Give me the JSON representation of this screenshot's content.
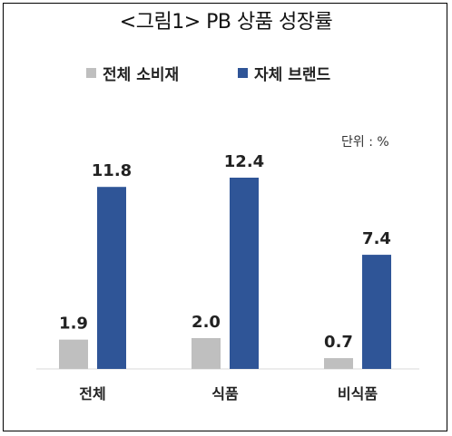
{
  "chart_data": {
    "type": "bar",
    "title": "<그림1> PB 상품 성장률",
    "unit_label": "단위 : %",
    "categories": [
      "전체",
      "식품",
      "비식품"
    ],
    "series": [
      {
        "name": "전체 소비재",
        "color": "#bfbfbf",
        "values": [
          1.9,
          2.0,
          0.7
        ]
      },
      {
        "name": "자체 브랜드",
        "color": "#2f5597",
        "values": [
          11.8,
          12.4,
          7.4
        ]
      }
    ],
    "value_labels": [
      [
        "1.9",
        "2.0",
        "0.7"
      ],
      [
        "11.8",
        "12.4",
        "7.4"
      ]
    ],
    "ylim": [
      0,
      12.4
    ],
    "grid": false,
    "legend": "top-center",
    "xlabel": "",
    "ylabel": ""
  }
}
